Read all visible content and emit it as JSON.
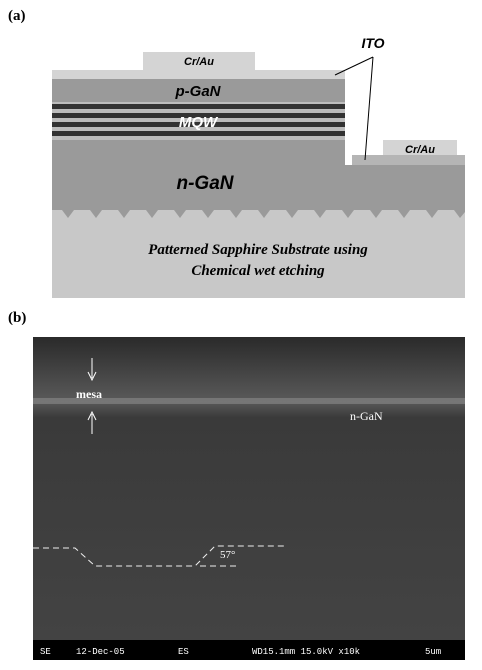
{
  "panel_a": {
    "label": "(a)",
    "pad_left": "Cr/Au",
    "ito": "ITO",
    "p_layer": "p-GaN",
    "mqw": "MQW",
    "n_layer": "n-GaN",
    "pad_right": "Cr/Au",
    "substrate_line1": "Patterned Sapphire Substrate using",
    "substrate_line2": "Chemical wet etching"
  },
  "panel_b": {
    "label": "(b)",
    "mesa": "mesa",
    "n_layer": "n-GaN",
    "angle": "57°",
    "info_bar": [
      "SE",
      "12-Dec-05",
      "ES",
      "WD15.1mm 15.0kV x10k",
      "5um"
    ]
  }
}
